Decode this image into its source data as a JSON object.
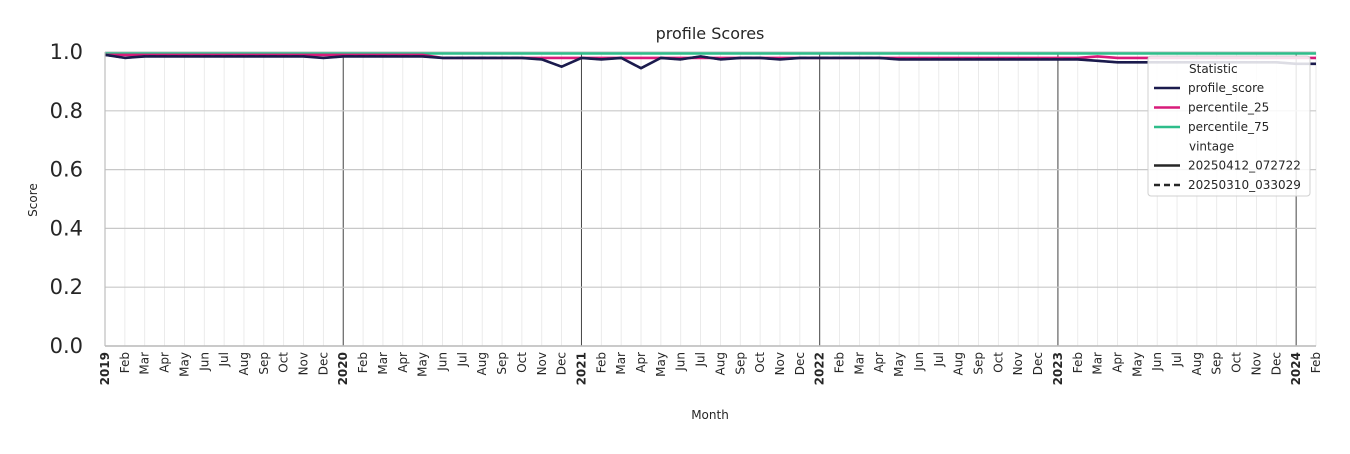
{
  "chart_data": {
    "type": "line",
    "title": "profile Scores",
    "xlabel": "Month",
    "ylabel": "Score",
    "ylim": [
      0,
      1
    ],
    "yticks": [
      "0.0",
      "0.2",
      "0.4",
      "0.6",
      "0.8",
      "1.0"
    ],
    "x_range": [
      "2019-01",
      "2024-02"
    ],
    "x_tick_labels": [
      "2019",
      "Feb",
      "Mar",
      "Apr",
      "May",
      "Jun",
      "Jul",
      "Aug",
      "Sep",
      "Oct",
      "Nov",
      "Dec",
      "2020",
      "Feb",
      "Mar",
      "Apr",
      "May",
      "Jun",
      "Jul",
      "Aug",
      "Sep",
      "Oct",
      "Nov",
      "Dec",
      "2021",
      "Feb",
      "Mar",
      "Apr",
      "May",
      "Jun",
      "Jul",
      "Aug",
      "Sep",
      "Oct",
      "Nov",
      "Dec",
      "2022",
      "Feb",
      "Mar",
      "Apr",
      "May",
      "Jun",
      "Jul",
      "Aug",
      "Sep",
      "Oct",
      "Nov",
      "Dec",
      "2023",
      "Feb",
      "Mar",
      "Apr",
      "May",
      "Jun",
      "Jul",
      "Aug",
      "Sep",
      "Oct",
      "Nov",
      "Dec",
      "2024",
      "Feb"
    ],
    "grid": true,
    "legend": {
      "placement": "top-right",
      "sections": [
        {
          "title": "Statistic",
          "entries": [
            {
              "label": "profile_score",
              "color": "#1b1b4d",
              "style": "solid"
            },
            {
              "label": "percentile_25",
              "color": "#d81b7a",
              "style": "solid"
            },
            {
              "label": "percentile_75",
              "color": "#2ebd8a",
              "style": "solid"
            }
          ]
        },
        {
          "title": "vintage",
          "entries": [
            {
              "label": "20250412_072722",
              "color": "#262626",
              "style": "solid"
            },
            {
              "label": "20250310_033029",
              "color": "#262626",
              "style": "dashed"
            }
          ]
        }
      ]
    },
    "series": [
      {
        "name": "percentile_75",
        "vintage": "20250412_072722",
        "color": "#2ebd8a",
        "style": "solid",
        "values": [
          0.995,
          0.995,
          0.995,
          0.995,
          0.995,
          0.995,
          0.995,
          0.995,
          0.995,
          0.995,
          0.995,
          0.995,
          0.995,
          0.995,
          0.995,
          0.995,
          0.995,
          0.995,
          0.995,
          0.995,
          0.995,
          0.995,
          0.995,
          0.995,
          0.995,
          0.995,
          0.995,
          0.995,
          0.995,
          0.995,
          0.995,
          0.995,
          0.995,
          0.995,
          0.995,
          0.995,
          0.995,
          0.995,
          0.995,
          0.995,
          0.995,
          0.995,
          0.995,
          0.995,
          0.995,
          0.995,
          0.995,
          0.995,
          0.995,
          0.995,
          0.995,
          0.995,
          0.995,
          0.995,
          0.995,
          0.995,
          0.995,
          0.995,
          0.995,
          0.995,
          0.995,
          0.995
        ]
      },
      {
        "name": "percentile_25",
        "vintage": "20250412_072722",
        "color": "#d81b7a",
        "style": "solid",
        "values": [
          0.99,
          0.99,
          0.99,
          0.99,
          0.99,
          0.99,
          0.99,
          0.99,
          0.99,
          0.99,
          0.99,
          0.99,
          0.99,
          0.99,
          0.99,
          0.99,
          0.99,
          0.98,
          0.98,
          0.98,
          0.98,
          0.98,
          0.98,
          0.98,
          0.98,
          0.98,
          0.98,
          0.98,
          0.98,
          0.98,
          0.98,
          0.98,
          0.98,
          0.98,
          0.98,
          0.98,
          0.98,
          0.98,
          0.98,
          0.98,
          0.98,
          0.98,
          0.98,
          0.98,
          0.98,
          0.98,
          0.98,
          0.98,
          0.98,
          0.98,
          0.985,
          0.98,
          0.98,
          0.98,
          0.98,
          0.98,
          0.98,
          0.98,
          0.98,
          0.98,
          0.98,
          0.98
        ]
      },
      {
        "name": "profile_score",
        "vintage": "20250412_072722",
        "color": "#1b1b4d",
        "style": "solid",
        "values": [
          0.99,
          0.98,
          0.985,
          0.985,
          0.985,
          0.985,
          0.985,
          0.985,
          0.985,
          0.985,
          0.985,
          0.98,
          0.985,
          0.985,
          0.985,
          0.985,
          0.985,
          0.98,
          0.98,
          0.98,
          0.98,
          0.98,
          0.975,
          0.95,
          0.98,
          0.975,
          0.98,
          0.945,
          0.98,
          0.975,
          0.985,
          0.975,
          0.98,
          0.98,
          0.975,
          0.98,
          0.98,
          0.98,
          0.98,
          0.98,
          0.975,
          0.975,
          0.975,
          0.975,
          0.975,
          0.975,
          0.975,
          0.975,
          0.975,
          0.975,
          0.97,
          0.965,
          0.965,
          0.965,
          0.965,
          0.965,
          0.965,
          0.965,
          0.965,
          0.965,
          0.96,
          0.96
        ]
      },
      {
        "name": "profile_score",
        "vintage": "20250310_033029",
        "color": "#1b1b4d",
        "style": "dashed",
        "values": [
          0.99,
          0.98,
          0.985,
          0.985,
          0.985,
          0.985,
          0.985,
          0.985,
          0.985,
          0.985,
          0.985,
          0.98,
          0.985,
          0.985,
          0.985,
          0.985,
          0.985,
          0.98,
          0.98,
          0.98,
          0.98,
          0.98,
          0.975,
          0.95,
          0.98,
          0.975,
          0.98,
          0.945,
          0.98,
          0.975,
          0.985,
          0.975,
          0.98,
          0.98,
          0.975,
          0.98,
          0.98,
          0.98,
          0.98,
          0.98,
          0.975,
          0.975,
          0.975,
          0.975,
          0.975,
          0.975,
          0.975,
          0.975,
          0.975,
          0.975,
          0.97,
          0.965,
          0.965,
          0.965,
          0.965,
          0.965,
          0.965,
          0.965,
          0.965,
          0.965,
          0.96,
          0.96
        ]
      }
    ]
  }
}
